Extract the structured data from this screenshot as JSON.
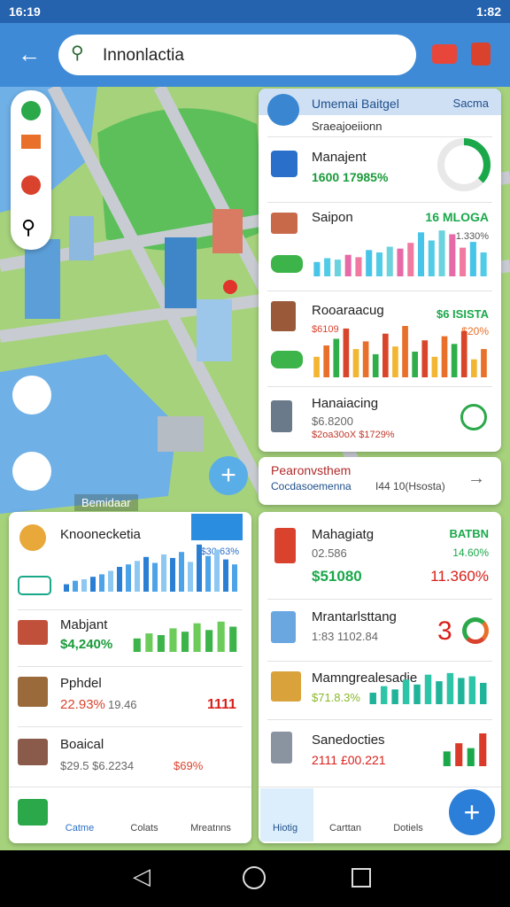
{
  "status_bar": {
    "time": "16:19",
    "clock_right": "1:82"
  },
  "search": {
    "query": "Innonlactia"
  },
  "top_panel": {
    "title": "Umemai Baitgel",
    "action": "Sacma",
    "subtitle": "Sraeajoeiionn",
    "rows": [
      {
        "title": "Manajent",
        "detail": "1600 17985%",
        "gauge": {
          "value": 37,
          "label": "37%",
          "color": "#1aa84a"
        }
      },
      {
        "title": "Saipon",
        "badge": "16 MLOGA",
        "note": "1.330%",
        "bars": {
          "ylim": [
            0,
            100
          ],
          "values": [
            30,
            38,
            35,
            45,
            40,
            55,
            50,
            62,
            58,
            70,
            92,
            75,
            96,
            88,
            60,
            72,
            50
          ],
          "colors": [
            "#48c4e8",
            "#52cbe6",
            "#6bd3de",
            "#e66aa8",
            "#f07aa0"
          ]
        }
      },
      {
        "title": "Rooaraacug",
        "badge": "$6 ISISTA",
        "note": "$20%",
        "extra": "$6109",
        "bars": {
          "ylim": [
            0,
            100
          ],
          "values": [
            40,
            62,
            75,
            95,
            55,
            70,
            45,
            85,
            60,
            100,
            50,
            72,
            40,
            80,
            65,
            90,
            35,
            55
          ],
          "colors": [
            "#f2b632",
            "#e8702a",
            "#2fae4a",
            "#d9452a"
          ]
        }
      },
      {
        "title": "Hanaiacing",
        "detail": "$6.8200",
        "sub": "$2oa30oX $1729%"
      }
    ]
  },
  "banner": {
    "title": "Pearonvsthem",
    "subtitle": "Cocdasoemenna",
    "meta": "I44 10(Hsosta)"
  },
  "map_label": "Bemidaar",
  "left_panel": {
    "rows": [
      {
        "title": "Knoonecketia",
        "value": "$30.63%",
        "bars": {
          "ylim": [
            0,
            100
          ],
          "values": [
            15,
            22,
            25,
            30,
            35,
            42,
            50,
            55,
            62,
            70,
            58,
            75,
            68,
            80,
            60,
            95,
            72,
            85,
            65,
            55
          ],
          "colors": [
            "#2a7fd4",
            "#4da3e8",
            "#8cc8f2"
          ]
        }
      },
      {
        "title": "Mabjant",
        "value": "$4,240%",
        "bars": {
          "ylim": [
            0,
            100
          ],
          "values": [
            40,
            55,
            50,
            70,
            60,
            85,
            65,
            90,
            75
          ],
          "colors": [
            "#3cb44a",
            "#6ccc5a"
          ]
        }
      },
      {
        "title": "Pphdel",
        "value": "22.93%",
        "detail": "19.46",
        "badge": "1111"
      },
      {
        "title": "Boaical",
        "value": "$29.5 $6.2234",
        "detail": "$69%"
      }
    ],
    "nav": [
      "Catme",
      "Colats",
      "Mreatnns"
    ]
  },
  "right_panel": {
    "rows": [
      {
        "title": "Mahagiatg",
        "badge": "BATBN",
        "value": "02.586",
        "note": "14.60%",
        "value2": "$51080",
        "note2": "11.360%"
      },
      {
        "title": "Mrantarlsttang",
        "value": "1:83 1102.84",
        "badge": "3"
      },
      {
        "title": "Mamngrealesadie",
        "value": "$71.8.3%",
        "bars": {
          "ylim": [
            0,
            100
          ],
          "values": [
            35,
            55,
            45,
            75,
            60,
            90,
            70,
            95,
            80,
            85,
            65
          ],
          "colors": [
            "#1fb39a",
            "#2ec4a8"
          ]
        }
      },
      {
        "title": "Sanedocties",
        "value": "2111 £00.221",
        "bars": {
          "ylim": [
            0,
            100
          ],
          "values": [
            45,
            70,
            55,
            100
          ],
          "colors": [
            "#1aa84a",
            "#d93a2a"
          ]
        }
      }
    ],
    "nav": [
      "Hiotig",
      "Carttan",
      "Dotiels"
    ]
  }
}
